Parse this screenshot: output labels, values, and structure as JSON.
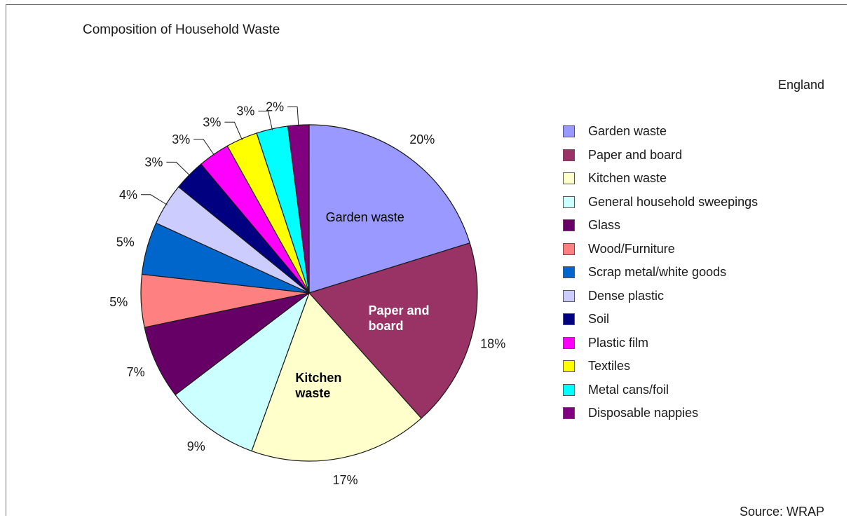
{
  "chart_data": {
    "type": "pie",
    "title": "Composition of Household Waste",
    "subtitle": "England",
    "source": "Source: WRAP",
    "slices": [
      {
        "label": "Garden waste",
        "value": 20,
        "value_label": "20%",
        "color": "#9999ff",
        "inner_label": "Garden waste",
        "inner_label_color": "#000000"
      },
      {
        "label": "Paper and board",
        "value": 18,
        "value_label": "18%",
        "color": "#993366",
        "inner_label": "Paper and board",
        "inner_label_color": "#ffffff"
      },
      {
        "label": "Kitchen waste",
        "value": 17,
        "value_label": "17%",
        "color": "#ffffcc",
        "inner_label": "Kitchen waste",
        "inner_label_color": "#000000"
      },
      {
        "label": "General household sweepings",
        "value": 9,
        "value_label": "9%",
        "color": "#ccffff"
      },
      {
        "label": "Glass",
        "value": 7,
        "value_label": "7%",
        "color": "#660066"
      },
      {
        "label": "Wood/Furniture",
        "value": 5,
        "value_label": "5%",
        "color": "#ff8080"
      },
      {
        "label": "Scrap metal/white goods",
        "value": 5,
        "value_label": "5%",
        "color": "#0066cc"
      },
      {
        "label": "Dense plastic",
        "value": 4,
        "value_label": "4%",
        "color": "#ccccff"
      },
      {
        "label": "Soil",
        "value": 3,
        "value_label": "3%",
        "color": "#000080"
      },
      {
        "label": "Plastic film",
        "value": 3,
        "value_label": "3%",
        "color": "#ff00ff"
      },
      {
        "label": "Textiles",
        "value": 3,
        "value_label": "3%",
        "color": "#ffff00"
      },
      {
        "label": "Metal cans/foil",
        "value": 3,
        "value_label": "3%",
        "color": "#00ffff"
      },
      {
        "label": "Disposable nappies",
        "value": 2,
        "value_label": "2%",
        "color": "#800080"
      }
    ],
    "legend_position": "right"
  }
}
